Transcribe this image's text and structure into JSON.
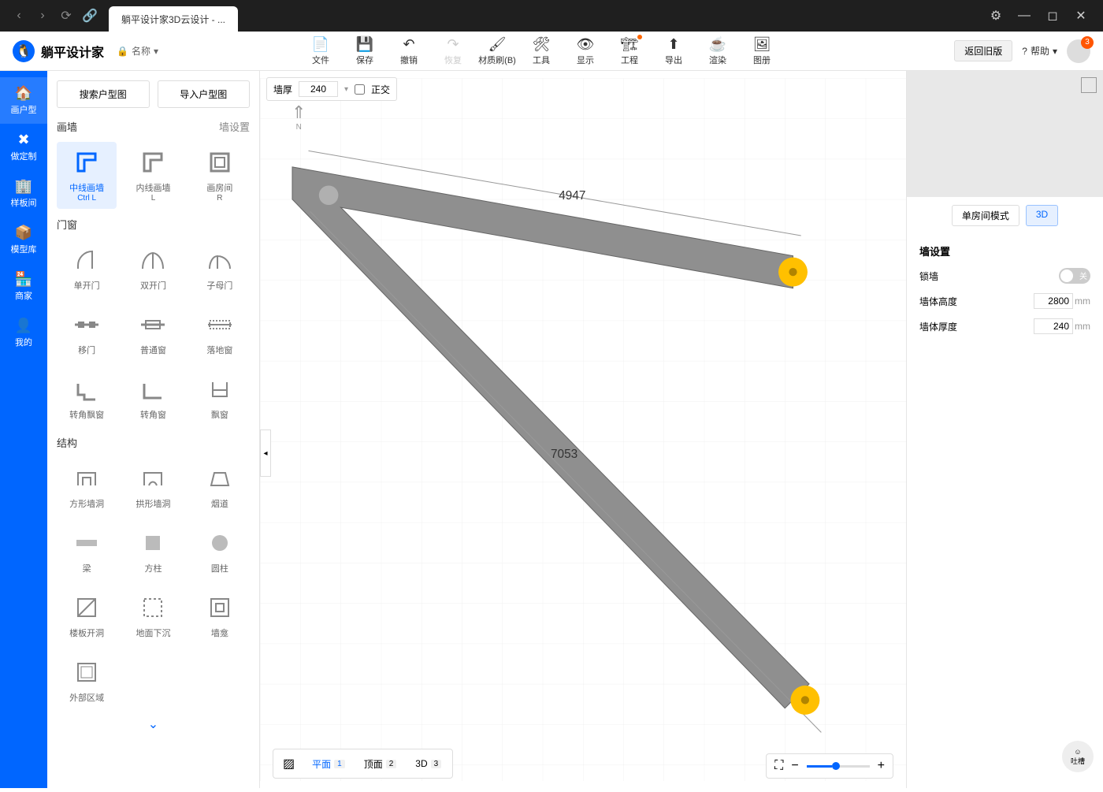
{
  "titlebar": {
    "tab_title": "躺平设计家3D云设计 - ..."
  },
  "toolbar": {
    "app_name": "躺平设计家",
    "name_dropdown_label": "名称",
    "items": [
      {
        "label": "文件"
      },
      {
        "label": "保存"
      },
      {
        "label": "撤销"
      },
      {
        "label": "恢复",
        "disabled": true
      },
      {
        "label": "材质刷(B)"
      },
      {
        "label": "工具"
      },
      {
        "label": "显示"
      },
      {
        "label": "工程",
        "dot": true
      },
      {
        "label": "导出"
      },
      {
        "label": "渲染"
      },
      {
        "label": "图册"
      }
    ],
    "back_old": "返回旧版",
    "help": "帮助",
    "avatar_badge": "3"
  },
  "rail": [
    {
      "label": "画户型",
      "active": true
    },
    {
      "label": "做定制"
    },
    {
      "label": "样板间"
    },
    {
      "label": "模型库"
    },
    {
      "label": "商家"
    },
    {
      "label": "我的"
    }
  ],
  "side": {
    "search_btn": "搜索户型图",
    "import_btn": "导入户型图",
    "cat_wall": "画墙",
    "cat_wall_settings": "墙设置",
    "wall_tools": [
      {
        "label": "中线画墙",
        "sub": "Ctrl L",
        "active": true
      },
      {
        "label": "内线画墙",
        "sub": "L"
      },
      {
        "label": "画房间",
        "sub": "R"
      }
    ],
    "cat_door": "门窗",
    "door_tools": [
      {
        "label": "单开门"
      },
      {
        "label": "双开门"
      },
      {
        "label": "子母门"
      },
      {
        "label": "移门"
      },
      {
        "label": "普通窗"
      },
      {
        "label": "落地窗"
      },
      {
        "label": "转角飘窗"
      },
      {
        "label": "转角窗"
      },
      {
        "label": "飘窗"
      }
    ],
    "cat_struct": "结构",
    "struct_tools": [
      {
        "label": "方形墙洞"
      },
      {
        "label": "拱形墙洞"
      },
      {
        "label": "烟道"
      },
      {
        "label": "梁"
      },
      {
        "label": "方柱"
      },
      {
        "label": "圆柱"
      },
      {
        "label": "楼板开洞"
      },
      {
        "label": "地面下沉"
      },
      {
        "label": "墙龛"
      },
      {
        "label": "外部区域"
      }
    ]
  },
  "canvas": {
    "wall_thickness_label": "墙厚",
    "wall_thickness_value": "240",
    "ortho_label": "正交",
    "dim1": "4947",
    "dim2": "7053",
    "walls_color": "#8f8f8f",
    "endpoint_color": "#ffc000",
    "grid_color": "#f0f0f0"
  },
  "view_tabs": {
    "plan": "平面",
    "plan_key": "1",
    "top": "顶面",
    "top_key": "2",
    "td": "3D",
    "td_key": "3"
  },
  "right": {
    "single_room": "单房间模式",
    "td": "3D",
    "panel_title": "墙设置",
    "lock_wall": "锁墙",
    "lock_off": "关",
    "height_label": "墙体高度",
    "height_value": "2800",
    "thickness_label": "墙体厚度",
    "thickness_value": "240",
    "unit": "mm",
    "feedback": "吐槽"
  }
}
